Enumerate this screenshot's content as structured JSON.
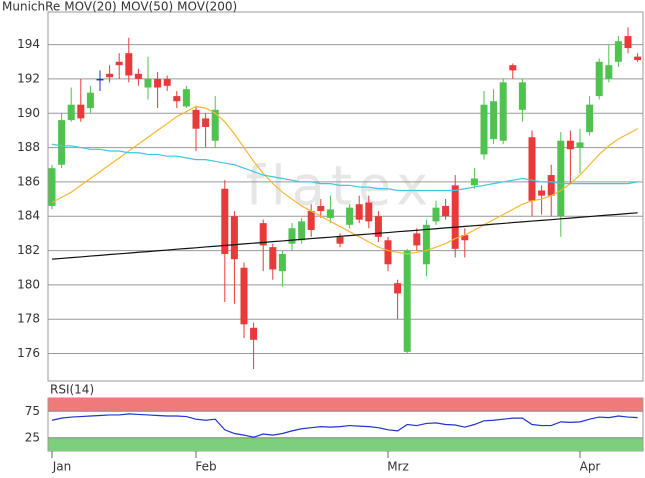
{
  "chart_data": [
    {
      "type": "candlestick",
      "name": "MunichRe",
      "name_color": "#e8603a",
      "watermark": "flatex",
      "color_up": "#4fc24f",
      "color_down": "#e83a3a",
      "grid": true,
      "categories": [
        "Jan",
        null,
        null,
        null,
        null,
        null,
        null,
        null,
        null,
        null,
        null,
        null,
        null,
        null,
        null,
        "Feb",
        null,
        null,
        null,
        null,
        null,
        null,
        null,
        null,
        null,
        null,
        null,
        null,
        null,
        null,
        null,
        null,
        null,
        null,
        null,
        "Mrz",
        null,
        null,
        null,
        null,
        null,
        null,
        null,
        null,
        null,
        null,
        null,
        null,
        null,
        null,
        null,
        null,
        null,
        null,
        null,
        "Apr",
        null,
        null,
        null,
        null,
        null,
        null
      ],
      "open": [
        184.6,
        187,
        189.6,
        190.5,
        190.3,
        192,
        192.3,
        193,
        193.5,
        192.3,
        191.5,
        192,
        192,
        191,
        190.4,
        190.2,
        189.7,
        188.4,
        185.6,
        184,
        181,
        177.5,
        183.6,
        182.2,
        180.8,
        182.4,
        182.6,
        184.3,
        184.6,
        183.9,
        182.8,
        183.5,
        184.7,
        184.8,
        184,
        182.6,
        180.1,
        176.1,
        183,
        181.2,
        183.7,
        184.6,
        185.8,
        182.9,
        185.8,
        187.6,
        188.5,
        188.4,
        192.8,
        190.2,
        188.6,
        185.5,
        186.4,
        184,
        188.4,
        188,
        188.9,
        191,
        192,
        193,
        194.5,
        193.3
      ],
      "high": [
        187,
        190,
        191.5,
        192,
        191.6,
        192.5,
        192.8,
        193.5,
        194.4,
        192.6,
        193.3,
        192.4,
        192.2,
        191.3,
        191.6,
        190.4,
        190,
        191,
        186.1,
        184.3,
        181.3,
        177.8,
        183.8,
        182.4,
        182,
        183.6,
        183.9,
        184.7,
        185,
        185.2,
        183,
        184.7,
        185.2,
        185.2,
        184.3,
        182.8,
        180.3,
        182.1,
        183.3,
        183.8,
        184.9,
        185,
        186.4,
        183.3,
        186.8,
        191.3,
        191.4,
        192,
        192.9,
        192,
        189,
        185.8,
        187,
        188.9,
        189,
        189.1,
        191,
        193.2,
        194,
        194.5,
        195,
        193.5
      ],
      "low": [
        184.4,
        186.8,
        189.5,
        189.5,
        190,
        191.3,
        191.8,
        192,
        191.8,
        191.6,
        190.8,
        190.3,
        191.3,
        190.3,
        190.3,
        187.8,
        188,
        188,
        179,
        178.9,
        176.9,
        175.1,
        180.8,
        180.3,
        179.9,
        182,
        182.4,
        182.8,
        183.9,
        183.6,
        182.2,
        183.3,
        183.6,
        183.3,
        182.5,
        180.8,
        178,
        176,
        182,
        180.5,
        183.5,
        183.8,
        181.6,
        181.6,
        185.6,
        187.3,
        188.2,
        188.2,
        192,
        189.5,
        184,
        184.1,
        184,
        182.8,
        185.9,
        186.5,
        188.7,
        190.8,
        191.8,
        192.7,
        193.5,
        193
      ],
      "close": [
        186.8,
        189.6,
        190.5,
        189.7,
        191.2,
        192,
        192.1,
        192.8,
        192.2,
        192,
        192,
        191.5,
        191.6,
        190.7,
        191.4,
        189.1,
        189.2,
        190.2,
        181.8,
        181.5,
        177.7,
        176.8,
        182.3,
        180.9,
        181.8,
        183.3,
        183.7,
        183.2,
        184.3,
        184.4,
        182.4,
        184.5,
        183.8,
        183.7,
        182.8,
        181.2,
        179.5,
        182,
        182.3,
        183.5,
        184.5,
        184,
        182.1,
        182.6,
        186.2,
        190.5,
        190.7,
        191.8,
        192.5,
        191.8,
        184.9,
        185.2,
        185.2,
        188.4,
        187.9,
        188.3,
        190.5,
        193,
        192.8,
        194.2,
        193.8,
        193.1
      ],
      "series": [
        {
          "name": "MOV(20)",
          "color": "#f5b830",
          "values": [
            184.8,
            185.1,
            185.4,
            185.8,
            186.2,
            186.6,
            187.0,
            187.4,
            187.8,
            188.2,
            188.6,
            189.0,
            189.4,
            189.8,
            190.1,
            190.4,
            190.3,
            190.0,
            189.5,
            188.8,
            188.0,
            187.2,
            186.5,
            185.9,
            185.4,
            185.0,
            184.6,
            184.3,
            184.0,
            183.7,
            183.4,
            183.1,
            182.8,
            182.5,
            182.2,
            182.0,
            181.9,
            181.8,
            181.9,
            182.0,
            182.2,
            182.4,
            182.7,
            182.9,
            183.2,
            183.5,
            183.8,
            184.1,
            184.4,
            184.7,
            184.9,
            185.0,
            185.2,
            185.5,
            185.9,
            186.4,
            187.0,
            187.6,
            188.1,
            188.5,
            188.8,
            189.1
          ]
        },
        {
          "name": "MOV(50)",
          "color": "#3cc8e0",
          "values": [
            188.2,
            188.1,
            188.1,
            188.0,
            187.9,
            187.9,
            187.8,
            187.8,
            187.7,
            187.7,
            187.6,
            187.6,
            187.5,
            187.5,
            187.4,
            187.3,
            187.3,
            187.2,
            187.1,
            187.0,
            186.8,
            186.6,
            186.4,
            186.3,
            186.2,
            186.1,
            186.0,
            186.0,
            185.9,
            185.9,
            185.8,
            185.8,
            185.7,
            185.7,
            185.6,
            185.6,
            185.5,
            185.5,
            185.5,
            185.5,
            185.5,
            185.5,
            185.5,
            185.6,
            185.7,
            185.8,
            185.9,
            186.0,
            186.1,
            186.2,
            186.1,
            186.0,
            186.0,
            185.9,
            185.9,
            185.9,
            185.9,
            185.9,
            185.9,
            185.9,
            185.9,
            186.0
          ]
        },
        {
          "name": "MOV(200)",
          "color": "#111111",
          "values": [
            181.5,
            181.54,
            181.59,
            181.63,
            181.68,
            181.72,
            181.77,
            181.81,
            181.85,
            181.9,
            181.94,
            181.99,
            182.03,
            182.08,
            182.12,
            182.16,
            182.21,
            182.25,
            182.3,
            182.34,
            182.39,
            182.43,
            182.47,
            182.52,
            182.56,
            182.61,
            182.65,
            182.7,
            182.74,
            182.78,
            182.83,
            182.87,
            182.92,
            182.96,
            183.01,
            183.05,
            183.1,
            183.14,
            183.18,
            183.23,
            183.27,
            183.32,
            183.36,
            183.41,
            183.45,
            183.49,
            183.54,
            183.58,
            183.63,
            183.67,
            183.72,
            183.76,
            183.8,
            183.85,
            183.89,
            183.94,
            183.98,
            184.03,
            184.07,
            184.11,
            184.16,
            184.2
          ]
        }
      ],
      "ylim": [
        174.4,
        195.9
      ],
      "yticks": [
        176,
        178,
        180,
        182,
        184,
        186,
        188,
        190,
        192,
        194
      ]
    },
    {
      "type": "line",
      "title": "RSI(14)",
      "color": "#2233cc",
      "band_colors": [
        "#7ccf7c",
        "#ee7a7a"
      ],
      "values": [
        58,
        62,
        64,
        65,
        66,
        67,
        68,
        68,
        70,
        69,
        68,
        67,
        66,
        66,
        65,
        60,
        58,
        60,
        40,
        33,
        30,
        26,
        32,
        30,
        33,
        38,
        42,
        44,
        46,
        45,
        46,
        48,
        47,
        46,
        44,
        40,
        38,
        50,
        48,
        52,
        53,
        50,
        49,
        45,
        50,
        57,
        58,
        60,
        62,
        62,
        50,
        48,
        48,
        55,
        54,
        55,
        60,
        64,
        63,
        66,
        64,
        63
      ],
      "ylim": [
        0,
        100
      ],
      "yticks": [
        25,
        75
      ]
    }
  ]
}
